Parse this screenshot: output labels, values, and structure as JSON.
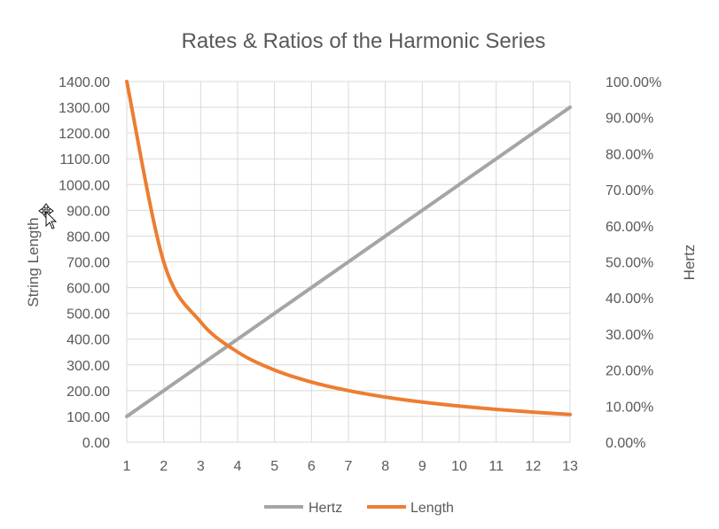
{
  "chart_data": {
    "type": "line",
    "title": "Rates & Ratios of the Harmonic Series",
    "x": [
      1,
      2,
      3,
      4,
      5,
      6,
      7,
      8,
      9,
      10,
      11,
      12,
      13
    ],
    "x_ticks": [
      "1",
      "2",
      "3",
      "4",
      "5",
      "6",
      "7",
      "8",
      "9",
      "10",
      "11",
      "12",
      "13"
    ],
    "y_left": {
      "label": "String Length",
      "ylim": [
        0,
        1400
      ],
      "ticks": [
        "0.00",
        "100.00",
        "200.00",
        "300.00",
        "400.00",
        "500.00",
        "600.00",
        "700.00",
        "800.00",
        "900.00",
        "1000.00",
        "1100.00",
        "1200.00",
        "1300.00",
        "1400.00"
      ]
    },
    "y_right": {
      "label": "Hertz",
      "ylim": [
        0,
        1
      ],
      "ticks": [
        "0.00%",
        "10.00%",
        "20.00%",
        "30.00%",
        "40.00%",
        "50.00%",
        "60.00%",
        "70.00%",
        "80.00%",
        "90.00%",
        "100.00%"
      ]
    },
    "series": [
      {
        "name": "Hertz",
        "axis": "left",
        "color": "#a5a5a5",
        "values": [
          100,
          200,
          300,
          400,
          500,
          600,
          700,
          800,
          900,
          1000,
          1100,
          1200,
          1300
        ]
      },
      {
        "name": "Length",
        "axis": "right",
        "color": "#ed7d31",
        "values": [
          1.0,
          0.5,
          0.3333,
          0.25,
          0.2,
          0.1667,
          0.1429,
          0.125,
          0.1111,
          0.1,
          0.0909,
          0.0833,
          0.0769
        ]
      }
    ],
    "grid": true,
    "legend": "bottom"
  }
}
